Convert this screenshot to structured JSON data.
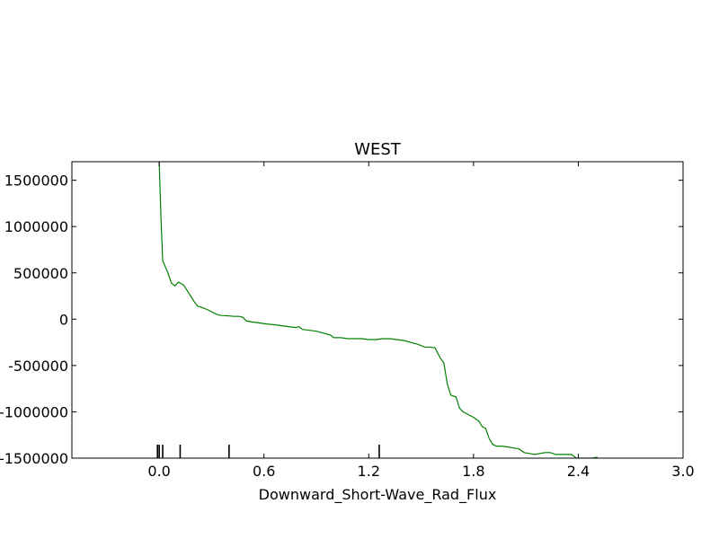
{
  "chart_data": {
    "type": "line",
    "title": "WEST",
    "xlabel": "Downward_Short-Wave_Rad_Flux",
    "ylabel": "",
    "xlim": [
      -0.5,
      3.0
    ],
    "ylim": [
      -1500000,
      1700000
    ],
    "x_ticks": [
      0.0,
      0.6,
      1.2,
      1.8,
      2.4,
      3.0
    ],
    "x_tick_labels": [
      "0.0",
      "0.6",
      "1.2",
      "1.8",
      "2.4",
      "3.0"
    ],
    "y_ticks": [
      1500000,
      1000000,
      500000,
      0,
      -500000,
      -1000000,
      -1500000
    ],
    "y_tick_labels": [
      "1500000",
      "1000000",
      "500000",
      "0",
      "-500000",
      "-1000000",
      "-1500000"
    ],
    "grid": false,
    "legend": "none",
    "series": [
      {
        "color": "#008000",
        "x": [
          0.0,
          0.01,
          0.02,
          0.05,
          0.07,
          0.09,
          0.11,
          0.14,
          0.18,
          0.2,
          0.22,
          0.24,
          0.28,
          0.31,
          0.34,
          0.36,
          0.4,
          0.43,
          0.46,
          0.48,
          0.5,
          0.53,
          0.57,
          0.61,
          0.66,
          0.7,
          0.74,
          0.78,
          0.8,
          0.82,
          0.86,
          0.9,
          0.94,
          0.98,
          1.0,
          1.04,
          1.08,
          1.12,
          1.16,
          1.2,
          1.24,
          1.28,
          1.32,
          1.36,
          1.4,
          1.44,
          1.48,
          1.52,
          1.55,
          1.58,
          1.61,
          1.63,
          1.65,
          1.67,
          1.7,
          1.72,
          1.74,
          1.77,
          1.8,
          1.83,
          1.85,
          1.87,
          1.89,
          1.91,
          1.93,
          1.96,
          2.0,
          2.03,
          2.06,
          2.09,
          2.12,
          2.15,
          2.18,
          2.21,
          2.24,
          2.27,
          2.3,
          2.33,
          2.36,
          2.39,
          2.42,
          2.45,
          2.48,
          2.51
        ],
        "y": [
          1700000,
          1100000,
          630000,
          500000,
          390000,
          360000,
          400000,
          370000,
          250000,
          190000,
          140000,
          130000,
          100000,
          70000,
          45000,
          40000,
          35000,
          30000,
          30000,
          20000,
          -20000,
          -30000,
          -40000,
          -50000,
          -60000,
          -70000,
          -80000,
          -90000,
          -80000,
          -110000,
          -120000,
          -130000,
          -150000,
          -170000,
          -200000,
          -200000,
          -210000,
          -210000,
          -210000,
          -220000,
          -220000,
          -210000,
          -210000,
          -220000,
          -230000,
          -250000,
          -270000,
          -300000,
          -300000,
          -310000,
          -420000,
          -470000,
          -700000,
          -820000,
          -840000,
          -960000,
          -1000000,
          -1030000,
          -1060000,
          -1100000,
          -1160000,
          -1180000,
          -1290000,
          -1350000,
          -1370000,
          -1370000,
          -1380000,
          -1390000,
          -1400000,
          -1440000,
          -1450000,
          -1460000,
          -1450000,
          -1440000,
          -1440000,
          -1460000,
          -1460000,
          -1460000,
          -1460000,
          -1500000,
          -1500000,
          -1500000,
          -1500000,
          -1490000
        ]
      }
    ],
    "rug_x": [
      -0.01,
      0.0,
      0.02,
      0.12,
      0.4,
      1.26
    ]
  }
}
